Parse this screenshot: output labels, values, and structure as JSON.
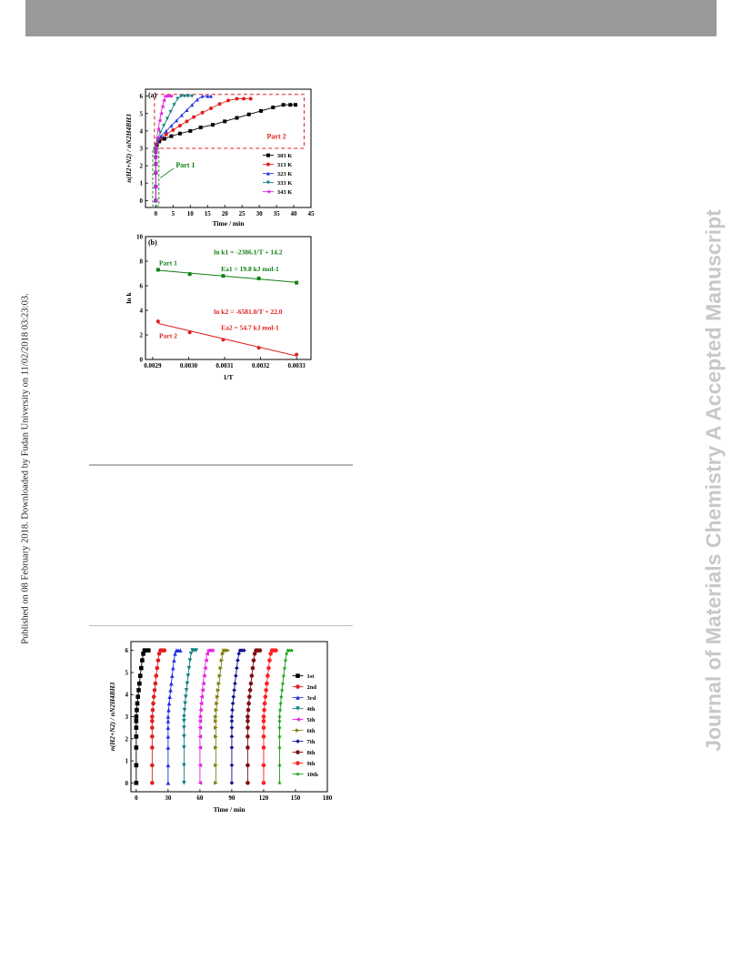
{
  "sidebar": {
    "published_note": "Published on 08 February 2018. Downloaded by Fudan University on 11/02/2018 03:23:03.",
    "journal_watermark": "Journal of Materials Chemistry A Accepted Manuscript"
  },
  "chart_data": [
    {
      "type": "scatter",
      "panel_label": "(a)",
      "xlabel": "Time / min",
      "ylabel": "n(H2+N2) / nN2H4BH3",
      "xlim": [
        -3,
        45
      ],
      "ylim": [
        -0.4,
        6.4
      ],
      "xticks": [
        "0",
        "5",
        "10",
        "15",
        "20",
        "25",
        "30",
        "35",
        "40",
        "45"
      ],
      "yticks": [
        "0",
        "1",
        "2",
        "3",
        "4",
        "5",
        "6"
      ],
      "annotations": [
        "Part 1",
        "Part 2"
      ],
      "legend_position": "right",
      "series": [
        {
          "name": "303 K",
          "color": "#000000",
          "marker": "square",
          "x": [
            0,
            0,
            0,
            0,
            0,
            0,
            0,
            0.3,
            1,
            2.5,
            4.5,
            7,
            10,
            13,
            16.5,
            20,
            23.5,
            27,
            30.5,
            34,
            37,
            39,
            40.5
          ],
          "y": [
            0,
            0.8,
            1.6,
            2.1,
            2.5,
            2.8,
            3.0,
            3.2,
            3.4,
            3.55,
            3.7,
            3.85,
            4.0,
            4.2,
            4.35,
            4.55,
            4.75,
            4.95,
            5.15,
            5.35,
            5.5,
            5.5,
            5.5
          ]
        },
        {
          "name": "313 K",
          "color": "#e02020",
          "marker": "circle",
          "x": [
            0,
            0,
            0,
            0,
            0,
            0,
            0,
            0.5,
            1.5,
            3,
            5,
            7,
            9,
            11,
            13.5,
            16,
            18.5,
            21,
            23.5,
            25.5,
            27.5
          ],
          "y": [
            0,
            0.8,
            1.6,
            2.1,
            2.5,
            2.8,
            3.0,
            3.3,
            3.6,
            3.8,
            4.05,
            4.3,
            4.55,
            4.8,
            5.05,
            5.3,
            5.55,
            5.75,
            5.85,
            5.85,
            5.85
          ]
        },
        {
          "name": "323 K",
          "color": "#2030e0",
          "marker": "triangle-up",
          "x": [
            0,
            0,
            0,
            0,
            0,
            0,
            0,
            0.5,
            1.5,
            3,
            4.5,
            6,
            7.5,
            9,
            10.5,
            12,
            13.5,
            15,
            16
          ],
          "y": [
            0,
            0.8,
            1.6,
            2.1,
            2.5,
            2.8,
            3.0,
            3.4,
            3.7,
            4.0,
            4.3,
            4.6,
            4.9,
            5.2,
            5.5,
            5.8,
            6.0,
            6.0,
            6.0
          ]
        },
        {
          "name": "333 K",
          "color": "#108080",
          "marker": "triangle-down",
          "x": [
            0,
            0,
            0,
            0,
            0,
            0,
            0,
            0.5,
            1.3,
            2.3,
            3.3,
            4.3,
            5.3,
            6.3,
            7.3,
            8.3,
            9.3,
            10.5
          ],
          "y": [
            0,
            0.8,
            1.6,
            2.1,
            2.5,
            2.8,
            3.0,
            3.5,
            3.9,
            4.3,
            4.7,
            5.1,
            5.5,
            5.85,
            6.0,
            6.0,
            6.0,
            6.0
          ]
        },
        {
          "name": "343 K",
          "color": "#e020e0",
          "marker": "triangle-left",
          "x": [
            0,
            0,
            0,
            0,
            0,
            0,
            0,
            0.3,
            0.7,
            1.1,
            1.5,
            1.9,
            2.3,
            2.7,
            3.2,
            3.8,
            4.4
          ],
          "y": [
            0,
            0.8,
            1.6,
            2.1,
            2.5,
            2.8,
            3.0,
            3.6,
            4.1,
            4.6,
            5.0,
            5.4,
            5.75,
            6.0,
            6.0,
            6.0,
            6.0
          ]
        }
      ]
    },
    {
      "type": "scatter",
      "panel_label": "(b)",
      "xlabel": "1/T",
      "ylabel": "ln k",
      "xlim": [
        0.00288,
        0.00334
      ],
      "ylim": [
        0,
        10
      ],
      "xticks": [
        "0.0029",
        "0.0030",
        "0.0031",
        "0.0032",
        "0.0033"
      ],
      "yticks": [
        "0",
        "2",
        "4",
        "6",
        "8",
        "10"
      ],
      "series": [
        {
          "name": "Part 1",
          "color": "#108010",
          "marker": "square",
          "x": [
            0.002915,
            0.003003,
            0.003096,
            0.003195,
            0.0033
          ],
          "y": [
            7.3,
            6.95,
            6.8,
            6.6,
            6.25
          ],
          "fit": {
            "label": "ln k1 = -2386.1/T + 14.2",
            "slope": -2386.1,
            "intercept": 14.2
          },
          "energy_label": "Ea1 = 19.8 kJ mol-1"
        },
        {
          "name": "Part 2",
          "color": "#e02020",
          "marker": "circle",
          "x": [
            0.002915,
            0.003003,
            0.003096,
            0.003195,
            0.0033
          ],
          "y": [
            3.1,
            2.2,
            1.6,
            0.95,
            0.4
          ],
          "fit": {
            "label": "ln k2 = -6581.0/T + 22.0",
            "slope": -6581.0,
            "intercept": 22.0
          },
          "energy_label": "Ea2 = 54.7 kJ mol-1"
        }
      ]
    },
    {
      "type": "scatter",
      "xlabel": "Time / min",
      "ylabel": "n(H2+N2) / nN2H4BH3",
      "xlim": [
        -5,
        180
      ],
      "ylim": [
        -0.4,
        6.4
      ],
      "xticks": [
        "0",
        "30",
        "60",
        "90",
        "120",
        "150",
        "180"
      ],
      "yticks": [
        "0",
        "1",
        "2",
        "3",
        "4",
        "5",
        "6"
      ],
      "legend_position": "right",
      "series": [
        {
          "name": "1st",
          "color": "#000000",
          "marker": "square",
          "offset": 0
        },
        {
          "name": "2nd",
          "color": "#e02020",
          "marker": "circle",
          "offset": 15
        },
        {
          "name": "3rd",
          "color": "#2030e0",
          "marker": "triangle-up",
          "offset": 30
        },
        {
          "name": "4th",
          "color": "#108080",
          "marker": "triangle-down",
          "offset": 45
        },
        {
          "name": "5th",
          "color": "#e020e0",
          "marker": "triangle-left",
          "offset": 60
        },
        {
          "name": "6th",
          "color": "#808010",
          "marker": "triangle-right",
          "offset": 75
        },
        {
          "name": "7th",
          "color": "#101090",
          "marker": "diamond",
          "offset": 90
        },
        {
          "name": "8th",
          "color": "#801010",
          "marker": "circle",
          "offset": 105
        },
        {
          "name": "9th",
          "color": "#ff2020",
          "marker": "circle",
          "offset": 120
        },
        {
          "name": "10th",
          "color": "#10a010",
          "marker": "star",
          "offset": 135
        }
      ],
      "cycle_profile": {
        "dx": [
          0,
          0,
          0,
          0,
          0,
          0,
          0,
          0.5,
          1,
          1.6,
          2.3,
          3,
          3.8,
          4.7,
          5.6,
          6.6,
          7.8,
          9.5,
          11.5
        ],
        "y": [
          0,
          0.8,
          1.6,
          2.1,
          2.5,
          2.8,
          3.0,
          3.3,
          3.6,
          3.9,
          4.2,
          4.5,
          4.85,
          5.2,
          5.55,
          5.85,
          6.0,
          6.0,
          6.0
        ]
      }
    }
  ]
}
